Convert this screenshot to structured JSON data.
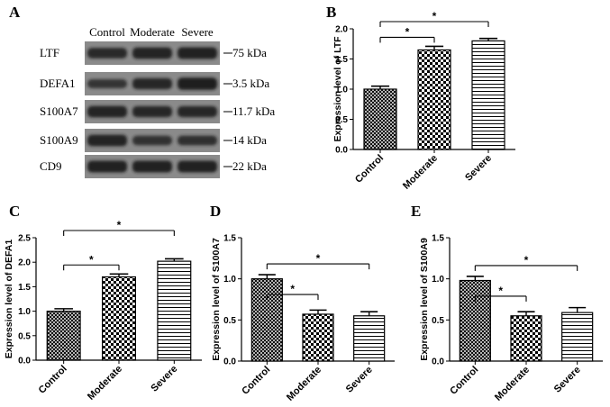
{
  "patterns": {
    "control": "cross-hatch",
    "moderate": "checkerboard",
    "severe": "horizontal-lines"
  },
  "colors": {
    "ink": "#000000",
    "blot_band": "#1a1a1a",
    "blot_bg": "#8a8a8a",
    "page": "#ffffff"
  },
  "western_blot": {
    "panel_label": "A",
    "lanes": [
      "Control",
      "Moderate",
      "Severe"
    ],
    "rows": [
      {
        "protein": "LTF",
        "weight": "75 kDa",
        "intensity": [
          0.75,
          0.85,
          0.9
        ]
      },
      {
        "protein": "DEFA1",
        "weight": "3.5 kDa",
        "intensity": [
          0.55,
          0.8,
          0.95
        ]
      },
      {
        "protein": "S100A7",
        "weight": "11.7 kDa",
        "intensity": [
          0.85,
          0.8,
          0.8
        ]
      },
      {
        "protein": "S100A9",
        "weight": "14 kDa",
        "intensity": [
          0.85,
          0.6,
          0.65
        ]
      },
      {
        "protein": "CD9",
        "weight": "22 kDa",
        "intensity": [
          0.9,
          0.9,
          0.9
        ]
      }
    ]
  },
  "chart_data": [
    {
      "panel_label": "B",
      "type": "bar",
      "categories": [
        "Control",
        "Moderate",
        "Severe"
      ],
      "values": [
        1.0,
        1.65,
        1.8
      ],
      "errors": [
        0.05,
        0.06,
        0.04
      ],
      "title": "",
      "xlabel": "",
      "ylabel": "Expression level of LTF",
      "ylim": [
        0,
        2.0
      ],
      "yticks": [
        "0.0",
        "0.5",
        "1.0",
        "1.5",
        "2.0"
      ],
      "significance": [
        {
          "from": 0,
          "to": 1,
          "label": "*"
        },
        {
          "from": 0,
          "to": 2,
          "label": "*"
        }
      ],
      "grid": false
    },
    {
      "panel_label": "C",
      "type": "bar",
      "categories": [
        "Control",
        "Moderate",
        "Severe"
      ],
      "values": [
        1.0,
        1.7,
        2.02
      ],
      "errors": [
        0.05,
        0.06,
        0.05
      ],
      "title": "",
      "xlabel": "",
      "ylabel": "Expression level of DEFA1",
      "ylim": [
        0,
        2.5
      ],
      "yticks": [
        "0.0",
        "0.5",
        "1.0",
        "1.5",
        "2.0",
        "2.5"
      ],
      "significance": [
        {
          "from": 0,
          "to": 1,
          "label": "*"
        },
        {
          "from": 0,
          "to": 2,
          "label": "*"
        }
      ],
      "grid": false
    },
    {
      "panel_label": "D",
      "type": "bar",
      "categories": [
        "Control",
        "Moderate",
        "Severe"
      ],
      "values": [
        1.0,
        0.57,
        0.55
      ],
      "errors": [
        0.05,
        0.05,
        0.05
      ],
      "title": "",
      "xlabel": "",
      "ylabel": "Expression level of S100A7",
      "ylim": [
        0,
        1.5
      ],
      "yticks": [
        "0.0",
        "0.5",
        "1.0",
        "1.5"
      ],
      "significance": [
        {
          "from": 0,
          "to": 1,
          "label": "*"
        },
        {
          "from": 0,
          "to": 2,
          "label": "*"
        }
      ],
      "grid": false
    },
    {
      "panel_label": "E",
      "type": "bar",
      "categories": [
        "Control",
        "Moderate",
        "Severe"
      ],
      "values": [
        0.98,
        0.55,
        0.59
      ],
      "errors": [
        0.05,
        0.05,
        0.06
      ],
      "title": "",
      "xlabel": "",
      "ylabel": "Expression level of S100A9",
      "ylim": [
        0,
        1.5
      ],
      "yticks": [
        "0.0",
        "0.5",
        "1.0",
        "1.5"
      ],
      "significance": [
        {
          "from": 0,
          "to": 1,
          "label": "*"
        },
        {
          "from": 0,
          "to": 2,
          "label": "*"
        }
      ],
      "grid": false
    }
  ]
}
